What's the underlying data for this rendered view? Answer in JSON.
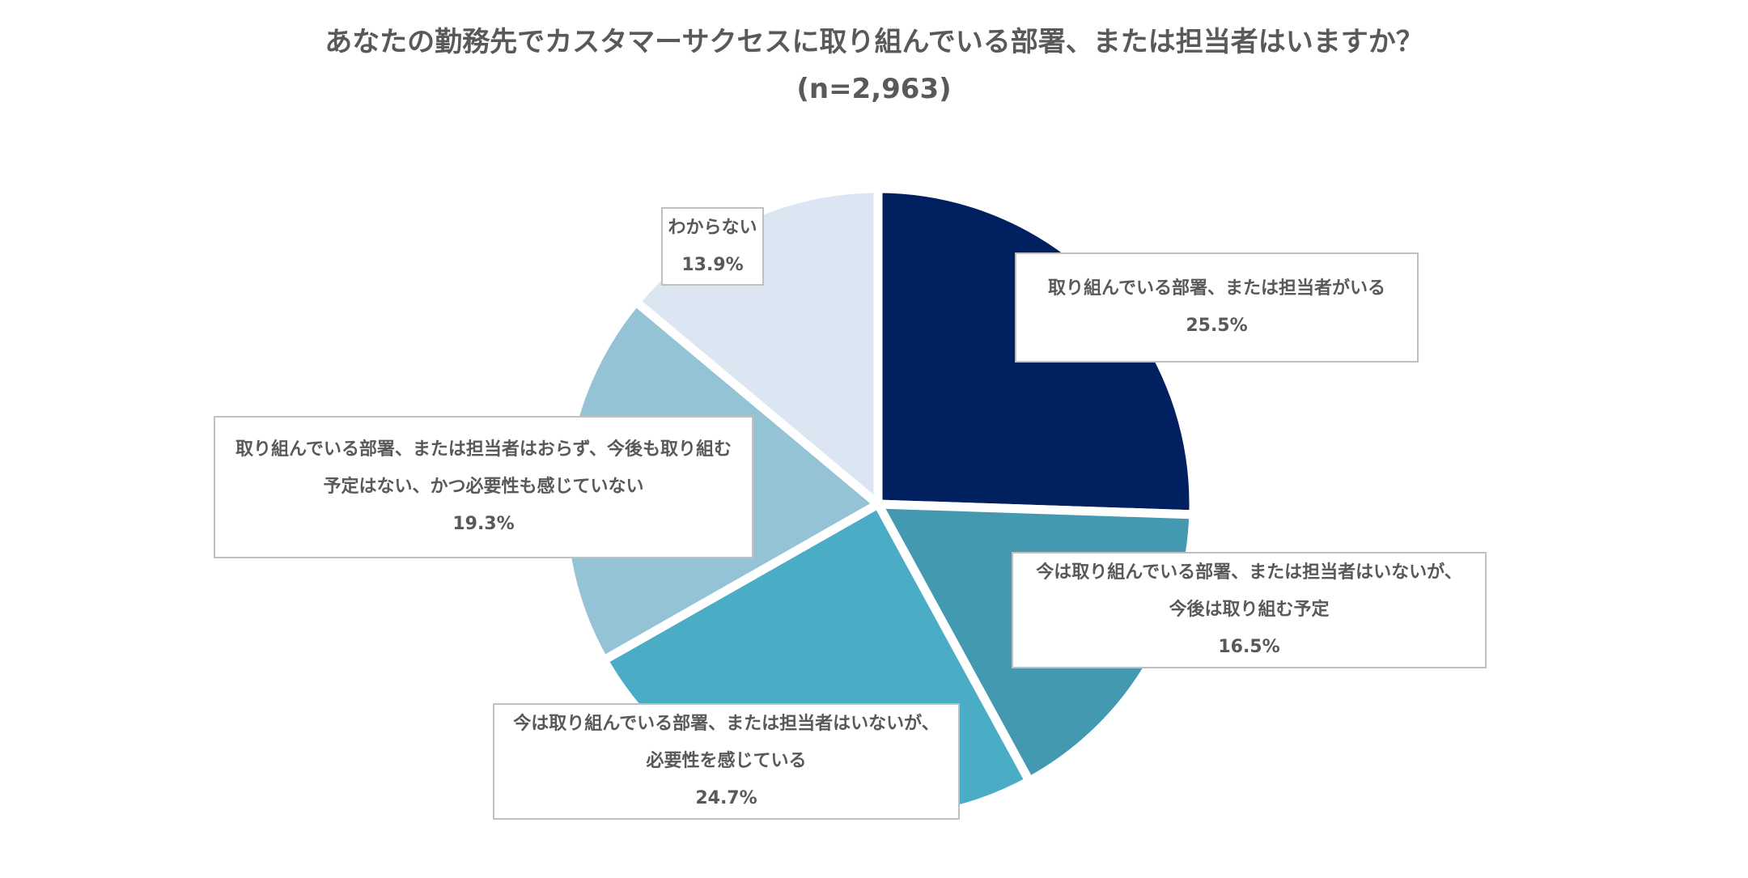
{
  "chart_data": {
    "type": "pie",
    "title": "あなたの勤務先でカスタマーサクセスに取り組んでいる部署、または担当者はいますか？",
    "subtitle": "(n=2,963)",
    "slices": [
      {
        "lines": [
          "取り組んでいる部署、または担当者がいる"
        ],
        "value": 25.5,
        "value_label": "25.5%",
        "color": "#002060"
      },
      {
        "lines": [
          "今は取り組んでいる部署、または担当者はいないが、",
          "今後は取り組む予定"
        ],
        "value": 16.5,
        "value_label": "16.5%",
        "color": "#4299B0"
      },
      {
        "lines": [
          "今は取り組んでいる部署、または担当者はいないが、",
          "必要性を感じている"
        ],
        "value": 24.7,
        "value_label": "24.7%",
        "color": "#4BACC6"
      },
      {
        "lines": [
          "取り組んでいる部署、または担当者はおらず、今後も取り組む",
          "予定はない、かつ必要性も感じていない"
        ],
        "value": 19.3,
        "value_label": "19.3%",
        "color": "#93C3D5"
      },
      {
        "lines": [
          "わからない"
        ],
        "value": 13.9,
        "value_label": "13.9%",
        "color": "#DCE6F2"
      }
    ]
  }
}
